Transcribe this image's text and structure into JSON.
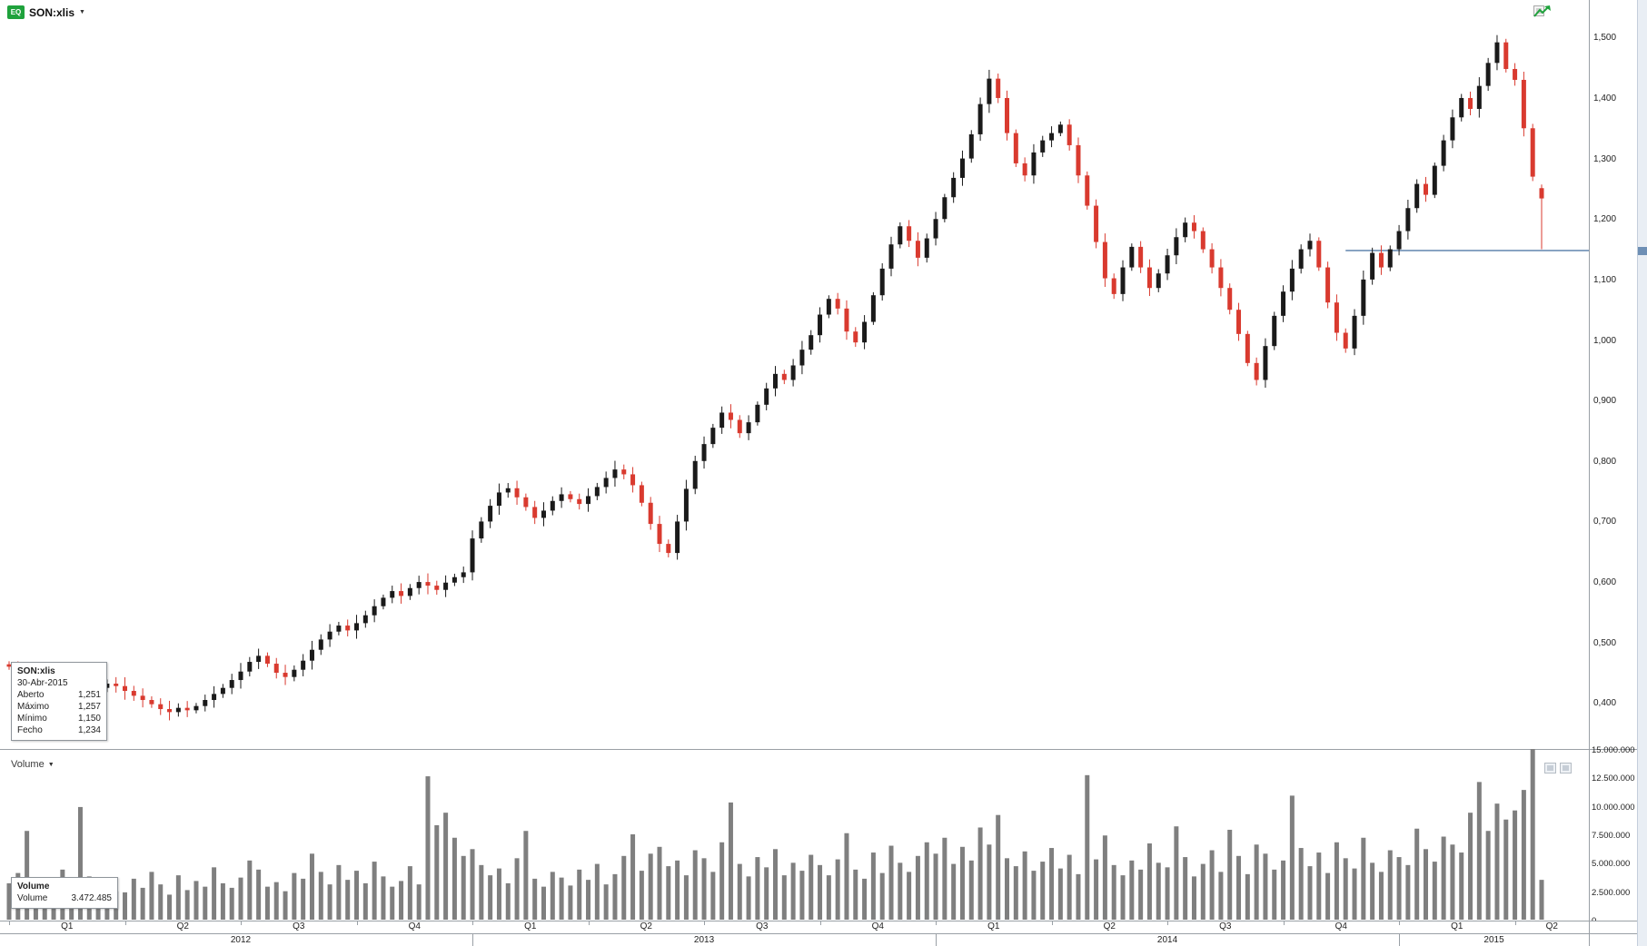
{
  "window": {
    "header": {
      "symbol": "SON:xlis",
      "equity_badge": "EQ"
    },
    "icons": {
      "caret_down": "▼"
    },
    "colors": {
      "up": "#1a1a1a",
      "down": "#d93a2f",
      "volume_bar": "#7f7f7f",
      "support_line": "#6e8fb5",
      "badge_green": "#1fa23c"
    }
  },
  "price_info_panel": {
    "title": "SON:xlis",
    "date": "30-Abr-2015",
    "rows": [
      {
        "label": "Aberto",
        "value": "1,251"
      },
      {
        "label": "Máximo",
        "value": "1,257"
      },
      {
        "label": "Mínimo",
        "value": "1,150"
      },
      {
        "label": "Fecho",
        "value": "1,234"
      }
    ]
  },
  "volume_selector": {
    "label": "Volume"
  },
  "volume_info_panel": {
    "title": "Volume",
    "label": "Volume",
    "value": "3.472.485"
  },
  "chart_data": {
    "type": "candlestick",
    "title": "SON:xlis daily price with volume",
    "symbol": "SON:xlis",
    "price_panel": {
      "ylim": [
        0.324,
        1.562
      ],
      "ticks": [
        1.5,
        1.4,
        1.3,
        1.2,
        1.1,
        1.0,
        0.9,
        0.8,
        0.7,
        0.6,
        0.5,
        0.4
      ],
      "tick_labels": [
        "1,500",
        "1,400",
        "1,300",
        "1,200",
        "1,100",
        "1,000",
        "0,900",
        "0,800",
        "0,700",
        "0,600",
        "0,500",
        "0,400"
      ]
    },
    "volume_panel": {
      "ylim": [
        0,
        15000000
      ],
      "ticks": [
        15000000,
        12500000,
        10000000,
        7500000,
        5000000,
        2500000,
        0
      ],
      "tick_labels": [
        "15.000.000",
        "12.500.000",
        "10.000.000",
        "7.500.000",
        "5.000.000",
        "2.500.000",
        "0"
      ]
    },
    "x_axis": {
      "quarter_starts": [
        0,
        13,
        26,
        39,
        52,
        65,
        78,
        91,
        104,
        117,
        130,
        143,
        156,
        169
      ],
      "quarter_labels": [
        "Q1",
        "Q2",
        "Q3",
        "Q4",
        "Q1",
        "Q2",
        "Q3",
        "Q4",
        "Q1",
        "Q2",
        "Q3",
        "Q4",
        "Q1",
        "Q2"
      ],
      "year_starts": [
        0,
        52,
        104,
        156
      ],
      "year_labels": [
        "2012",
        "2013",
        "2014",
        "2015"
      ]
    },
    "closes": [
      0.46,
      0.452,
      0.447,
      0.455,
      0.448,
      0.44,
      0.435,
      0.442,
      0.438,
      0.43,
      0.425,
      0.432,
      0.428,
      0.42,
      0.412,
      0.405,
      0.398,
      0.39,
      0.385,
      0.392,
      0.388,
      0.395,
      0.405,
      0.415,
      0.425,
      0.438,
      0.452,
      0.468,
      0.478,
      0.465,
      0.45,
      0.443,
      0.455,
      0.47,
      0.488,
      0.505,
      0.518,
      0.528,
      0.52,
      0.532,
      0.545,
      0.56,
      0.574,
      0.585,
      0.577,
      0.59,
      0.6,
      0.594,
      0.587,
      0.599,
      0.608,
      0.616,
      0.672,
      0.7,
      0.726,
      0.748,
      0.755,
      0.74,
      0.724,
      0.706,
      0.718,
      0.734,
      0.745,
      0.737,
      0.729,
      0.742,
      0.757,
      0.772,
      0.786,
      0.778,
      0.76,
      0.731,
      0.696,
      0.663,
      0.648,
      0.7,
      0.754,
      0.8,
      0.828,
      0.855,
      0.88,
      0.868,
      0.846,
      0.864,
      0.893,
      0.92,
      0.944,
      0.934,
      0.958,
      0.984,
      1.008,
      1.042,
      1.068,
      1.052,
      1.014,
      0.996,
      1.03,
      1.074,
      1.118,
      1.158,
      1.188,
      1.164,
      1.136,
      1.168,
      1.2,
      1.236,
      1.268,
      1.3,
      1.34,
      1.39,
      1.432,
      1.4,
      1.342,
      1.292,
      1.272,
      1.31,
      1.33,
      1.342,
      1.356,
      1.322,
      1.272,
      1.222,
      1.162,
      1.102,
      1.076,
      1.12,
      1.154,
      1.12,
      1.086,
      1.11,
      1.14,
      1.17,
      1.194,
      1.18,
      1.15,
      1.12,
      1.086,
      1.05,
      1.01,
      0.962,
      0.934,
      0.99,
      1.04,
      1.08,
      1.118,
      1.15,
      1.164,
      1.12,
      1.062,
      1.012,
      0.986,
      1.04,
      1.1,
      1.144,
      1.12,
      1.15,
      1.18,
      1.218,
      1.258,
      1.24,
      1.288,
      1.33,
      1.368,
      1.4,
      1.382,
      1.42,
      1.458,
      1.492,
      1.448,
      1.43,
      1.35,
      1.27,
      1.234
    ],
    "volumes_millions": [
      3.2,
      4.1,
      7.8,
      2.9,
      3.5,
      2.6,
      4.4,
      3.0,
      9.9,
      3.8,
      2.7,
      3.3,
      2.5,
      2.4,
      3.6,
      2.8,
      4.2,
      3.1,
      2.2,
      3.9,
      2.6,
      3.4,
      2.9,
      4.6,
      3.2,
      2.8,
      3.7,
      5.2,
      4.4,
      2.9,
      3.3,
      2.5,
      4.1,
      3.6,
      5.8,
      4.2,
      3.1,
      4.8,
      3.5,
      4.3,
      3.2,
      5.1,
      3.8,
      2.9,
      3.4,
      4.7,
      3.1,
      12.6,
      8.3,
      9.4,
      7.2,
      5.6,
      6.2,
      4.8,
      3.9,
      4.5,
      3.2,
      5.4,
      7.8,
      3.6,
      2.9,
      4.2,
      3.7,
      3.0,
      4.4,
      3.5,
      4.9,
      3.1,
      4.0,
      5.6,
      7.5,
      4.3,
      5.8,
      6.4,
      4.7,
      5.2,
      3.9,
      6.1,
      5.4,
      4.2,
      6.8,
      10.3,
      4.9,
      3.8,
      5.5,
      4.6,
      6.2,
      3.9,
      5.0,
      4.3,
      5.7,
      4.8,
      3.9,
      5.3,
      7.6,
      4.4,
      3.6,
      5.9,
      4.1,
      6.5,
      5.0,
      4.2,
      5.6,
      6.8,
      5.8,
      7.2,
      4.9,
      6.4,
      5.2,
      8.1,
      6.6,
      9.2,
      5.4,
      4.7,
      6.0,
      4.3,
      5.1,
      6.3,
      4.5,
      5.7,
      4.0,
      12.7,
      5.3,
      7.4,
      4.8,
      3.9,
      5.2,
      4.4,
      6.7,
      5.0,
      4.6,
      8.2,
      5.5,
      3.8,
      4.9,
      6.1,
      4.2,
      7.9,
      5.6,
      4.0,
      6.6,
      5.8,
      4.4,
      5.2,
      10.9,
      6.3,
      4.7,
      5.9,
      4.1,
      6.8,
      5.4,
      4.5,
      7.2,
      5.0,
      4.2,
      6.1,
      5.5,
      4.8,
      8.0,
      6.2,
      5.1,
      7.3,
      6.6,
      5.9,
      9.4,
      12.1,
      7.8,
      10.2,
      8.8,
      9.6,
      11.4,
      15.0,
      3.5
    ],
    "last_candle": {
      "date": "30-Abr-2015",
      "open": 1.251,
      "high": 1.257,
      "low": 1.15,
      "close": 1.234,
      "volume": 3472485
    },
    "support_line": {
      "price": 1.148,
      "start_index": 150
    }
  }
}
